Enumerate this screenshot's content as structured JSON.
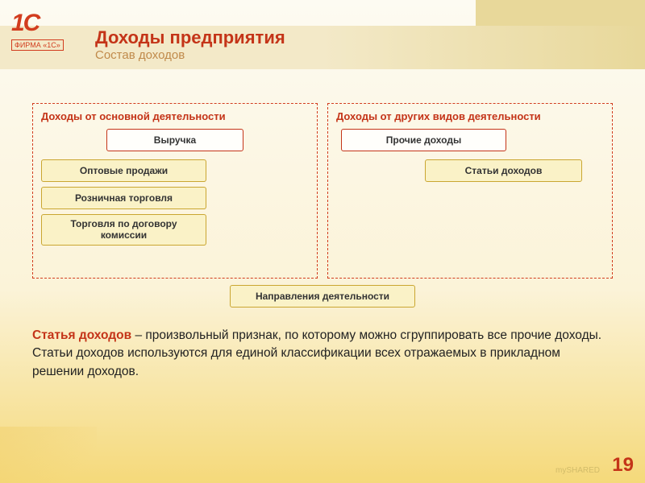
{
  "logo": {
    "brand": "1C",
    "sub": "ФИРМА «1С»"
  },
  "header": {
    "title": "Доходы предприятия",
    "subtitle": "Состав доходов"
  },
  "diagram": {
    "left": {
      "title": "Доходы от основной деятельности",
      "main": "Выручка",
      "items": [
        "Оптовые продажи",
        "Розничная торговля",
        "Торговля по договору комиссии"
      ]
    },
    "right": {
      "title": "Доходы от других видов деятельности",
      "main": "Прочие доходы",
      "item": "Статьи доходов"
    },
    "bottom": "Направления деятельности",
    "colors": {
      "border_primary": "#c43418",
      "border_secondary": "#caa631",
      "fill_secondary": "#faf2c7",
      "dashed_border": "#d23c1e"
    }
  },
  "paragraph": {
    "lead": "Статья доходов",
    "rest": " – произвольный признак, по которому можно сгруппировать все прочие доходы. Статьи доходов используются для единой классификации всех отражаемых в прикладном решении доходов."
  },
  "page_number": "19",
  "watermark": "mySHARED"
}
